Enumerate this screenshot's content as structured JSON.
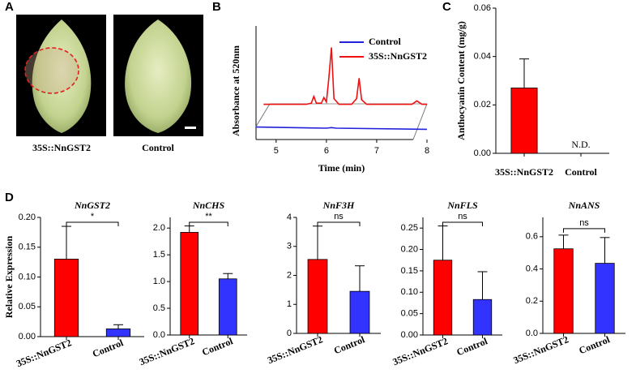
{
  "panel_labels": [
    "A",
    "B",
    "C",
    "D"
  ],
  "photos": {
    "labels": [
      "35S::NnGST2",
      "Control"
    ]
  },
  "chart_data": [
    {
      "type": "line",
      "ylabel": "Absorbance at 520nm",
      "xlabel": "Time (min)",
      "xlim": [
        4.6,
        8.0
      ],
      "xticks": [
        5,
        6,
        7,
        8
      ],
      "ylim": [
        0,
        10
      ],
      "series": [
        {
          "name": "Control",
          "color": "#2222dd",
          "x": [
            4.6,
            6.0,
            6.1,
            6.2,
            8.0
          ],
          "values": [
            1.1,
            1.0,
            1.05,
            1.0,
            0.9
          ]
        },
        {
          "name": "35S::NnGST2",
          "color": "#ee1111",
          "x": [
            4.75,
            5.6,
            5.7,
            5.75,
            5.8,
            5.9,
            5.95,
            6.0,
            6.05,
            6.1,
            6.15,
            6.25,
            6.5,
            6.6,
            6.65,
            6.7,
            6.8,
            7.7,
            7.8,
            7.9,
            8.0
          ],
          "values": [
            3.1,
            3.1,
            3.2,
            3.8,
            3.2,
            3.2,
            3.7,
            3.3,
            5.5,
            8.1,
            3.6,
            3.1,
            3.1,
            3.6,
            5.4,
            3.5,
            3.1,
            3.1,
            3.4,
            3.1,
            3.1
          ]
        }
      ],
      "legend": "upper right"
    },
    {
      "type": "bar",
      "ylabel": "Anthocyanin Content (mg/g)",
      "categories": [
        "35S::NnGST2",
        "Control"
      ],
      "values": [
        0.027,
        null
      ],
      "errors": [
        0.012,
        null
      ],
      "colors": [
        "#ff0000",
        "#3333ff"
      ],
      "annotation": "N.D.",
      "ylim": [
        0,
        0.06
      ],
      "yticks": [
        {
          "value": 0,
          "label": "0.00"
        },
        {
          "value": 0.02,
          "label": "0.02"
        },
        {
          "value": 0.04,
          "label": "0.04"
        },
        {
          "value": 0.06,
          "label": "0.06"
        }
      ]
    },
    {
      "type": "bar",
      "title": "NnGST2",
      "ylabel": "Relative Expression",
      "categories": [
        "35S::NnGST2",
        "Control"
      ],
      "values": [
        0.13,
        0.013
      ],
      "errors": [
        0.055,
        0.007
      ],
      "colors": [
        "#ff0000",
        "#3333ff"
      ],
      "significance": "*",
      "ylim": [
        0,
        0.2
      ],
      "yticks": [
        {
          "value": 0,
          "label": "0.00"
        },
        0.05,
        {
          "value": 0.1,
          "label": "0.10"
        },
        0.15,
        {
          "value": 0.2,
          "label": "0.20"
        }
      ]
    },
    {
      "type": "bar",
      "title": "NnCHS",
      "categories": [
        "35S::NnGST2",
        "Control"
      ],
      "values": [
        1.92,
        1.05
      ],
      "errors": [
        0.12,
        0.1
      ],
      "colors": [
        "#ff0000",
        "#3333ff"
      ],
      "significance": "**",
      "ylim": [
        0,
        2.2
      ],
      "yticks": [
        {
          "value": 0,
          "label": "0.0"
        },
        0.5,
        {
          "value": 1,
          "label": "1.0"
        },
        1.5,
        {
          "value": 2,
          "label": "2.0"
        }
      ]
    },
    {
      "type": "bar",
      "title": "NnF3H",
      "categories": [
        "35S::NnGST2",
        "Control"
      ],
      "values": [
        2.55,
        1.45
      ],
      "errors": [
        1.15,
        0.88
      ],
      "colors": [
        "#ff0000",
        "#3333ff"
      ],
      "significance": "ns",
      "ylim": [
        0,
        4
      ],
      "yticks": [
        0,
        1,
        2,
        3,
        4
      ]
    },
    {
      "type": "bar",
      "title": "NnFLS",
      "categories": [
        "35S::NnGST2",
        "Control"
      ],
      "values": [
        0.175,
        0.083
      ],
      "errors": [
        0.08,
        0.065
      ],
      "colors": [
        "#ff0000",
        "#3333ff"
      ],
      "significance": "ns",
      "ylim": [
        0,
        0.275
      ],
      "yticks": [
        {
          "value": 0,
          "label": "0.00"
        },
        0.05,
        {
          "value": 0.1,
          "label": "0.10"
        },
        0.15,
        {
          "value": 0.2,
          "label": "0.20"
        },
        0.25
      ]
    },
    {
      "type": "bar",
      "title": "NnANS",
      "categories": [
        "35S::NnGST2",
        "Control"
      ],
      "values": [
        0.525,
        0.435
      ],
      "errors": [
        0.085,
        0.16
      ],
      "colors": [
        "#ff0000",
        "#3333ff"
      ],
      "significance": "ns",
      "ylim": [
        0,
        0.72
      ],
      "yticks": [
        {
          "value": 0,
          "label": "0.0"
        },
        0.2,
        0.4,
        0.6
      ]
    }
  ]
}
